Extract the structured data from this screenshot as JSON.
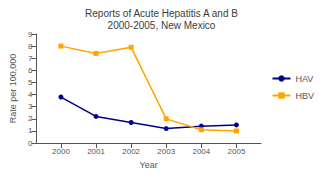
{
  "chart_data": {
    "type": "line",
    "title": "Reports of Acute Hepatitis A and B\n2000-2005, New Mexico",
    "xlabel": "Year",
    "ylabel": "Rate per 100,000",
    "x": [
      2000,
      2001,
      2002,
      2003,
      2004,
      2005
    ],
    "series": [
      {
        "name": "HAV",
        "color": "#00008B",
        "marker": "circle",
        "values": [
          3.8,
          2.2,
          1.7,
          1.2,
          1.4,
          1.5
        ]
      },
      {
        "name": "HBV",
        "color": "#FFA500",
        "marker": "square",
        "values": [
          8.0,
          7.4,
          7.9,
          2.0,
          1.1,
          1.0
        ]
      }
    ],
    "xlim": [
      1999.3,
      2005.7
    ],
    "xticks": [
      2000,
      2001,
      2002,
      2003,
      2004,
      2005
    ],
    "ylim": [
      0,
      9
    ],
    "yticks": [
      0,
      1,
      2,
      3,
      4,
      5,
      6,
      7,
      8,
      9
    ],
    "grid": false,
    "legend": "right"
  }
}
